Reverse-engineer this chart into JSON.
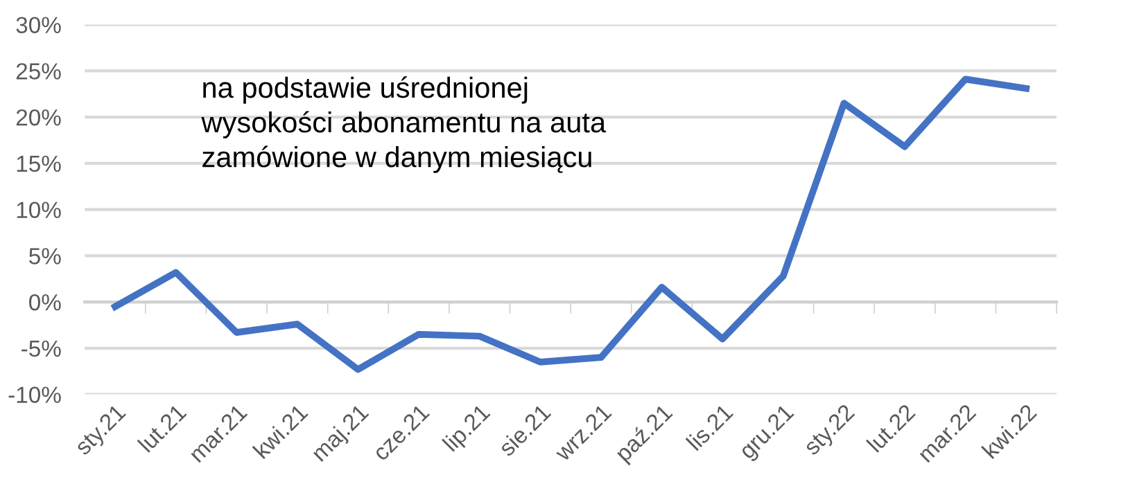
{
  "chart_data": {
    "type": "line",
    "annotations": [
      "na podstawie uśrednionej\nwysokości abonamentu na auta\nzamówione w danym miesiącu"
    ],
    "categories": [
      "sty.21",
      "lut.21",
      "mar.21",
      "kwi.21",
      "maj.21",
      "cze.21",
      "lip.21",
      "sie.21",
      "wrz.21",
      "paź.21",
      "lis.21",
      "gru.21",
      "sty.22",
      "lut.22",
      "mar.22",
      "kwi.22"
    ],
    "series": [
      {
        "color": "#4472c4",
        "values": [
          -0.5,
          3.2,
          -3.3,
          -2.4,
          -7.3,
          -3.5,
          -3.7,
          -6.5,
          -6.0,
          1.6,
          -4.0,
          2.8,
          21.5,
          16.8,
          24.1,
          23.1
        ]
      }
    ],
    "ylim": [
      -10,
      30
    ],
    "yticks": [
      {
        "value": -10,
        "label": "-10%"
      },
      {
        "value": -5,
        "label": "-5%"
      },
      {
        "value": 0,
        "label": "0%"
      },
      {
        "value": 5,
        "label": "5%"
      },
      {
        "value": 10,
        "label": "10%"
      },
      {
        "value": 15,
        "label": "15%"
      },
      {
        "value": 20,
        "label": "20%"
      },
      {
        "value": 25,
        "label": "25%"
      },
      {
        "value": 30,
        "label": "30%"
      }
    ],
    "grid": "y",
    "legend": false,
    "marker": "none",
    "line_style": "solid"
  }
}
